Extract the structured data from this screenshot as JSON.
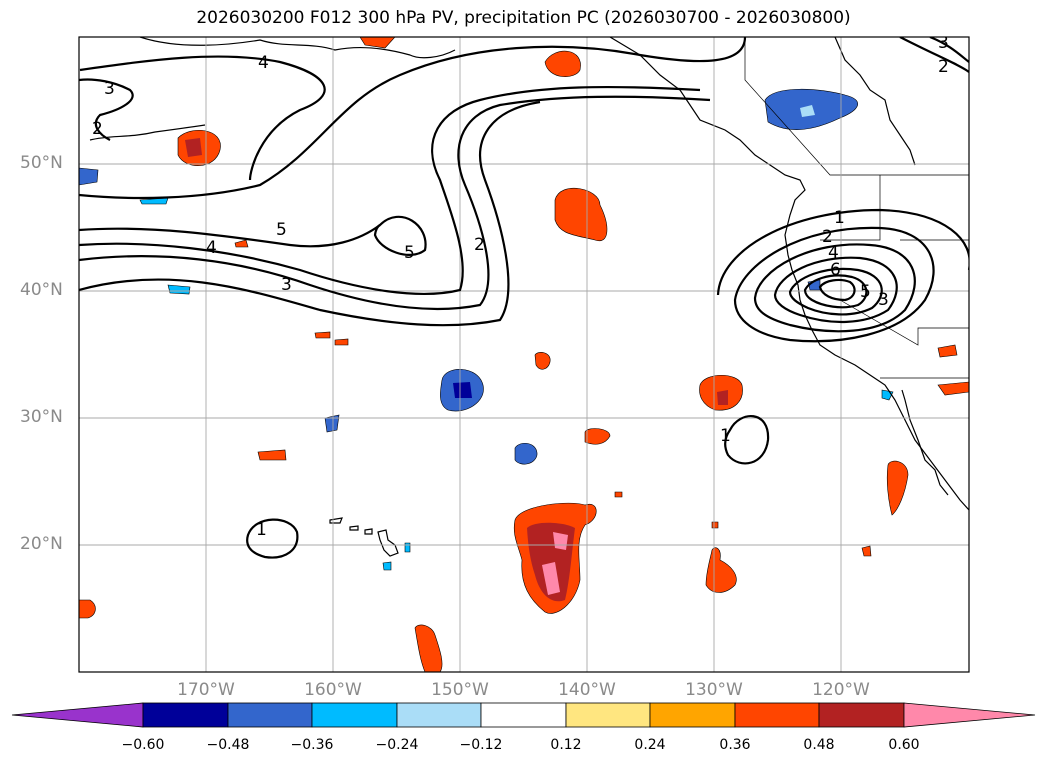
{
  "title": "2026030200 F012 300 hPa PV, precipitation PC (2026030700 - 2026030800)",
  "map": {
    "projection": "PlateCarree",
    "lon_range": [
      -180,
      -110
    ],
    "lat_range": [
      10,
      60
    ],
    "gridlines": true,
    "coastlines": true,
    "lat_ticks": [
      {
        "value": 50,
        "label": "50°N"
      },
      {
        "value": 40,
        "label": "40°N"
      },
      {
        "value": 30,
        "label": "30°N"
      },
      {
        "value": 20,
        "label": "20°N"
      }
    ],
    "lon_ticks": [
      {
        "value": -170,
        "label": "170°W"
      },
      {
        "value": -160,
        "label": "160°W"
      },
      {
        "value": -150,
        "label": "150°W"
      },
      {
        "value": -140,
        "label": "140°W"
      },
      {
        "value": -130,
        "label": "130°W"
      },
      {
        "value": -120,
        "label": "120°W"
      }
    ]
  },
  "pv_contour_labels": [
    "1",
    "2",
    "3",
    "4",
    "5",
    "6"
  ],
  "colorbar": {
    "extend": "both",
    "ticks": [
      "−0.60",
      "−0.48",
      "−0.36",
      "−0.24",
      "−0.12",
      "0.12",
      "0.24",
      "0.36",
      "0.48",
      "0.60"
    ],
    "colors": [
      "#9933cc",
      "#000099",
      "#3366cc",
      "#00bbff",
      "#aaddf7",
      "#ffffff",
      "#ffe680",
      "#ffa500",
      "#ff4500",
      "#b22222",
      "#ff88aa"
    ]
  }
}
